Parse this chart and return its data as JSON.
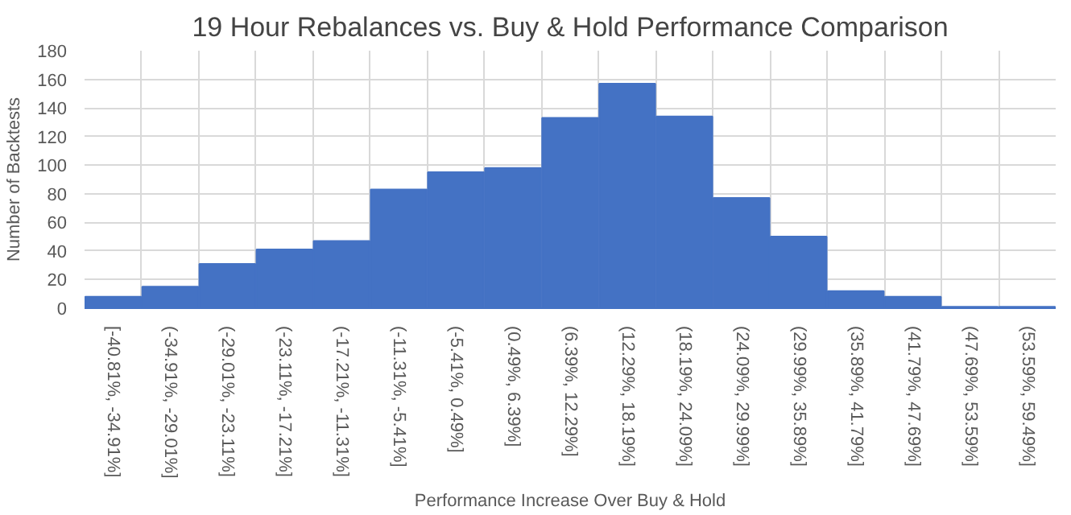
{
  "chart_data": {
    "type": "bar",
    "title": "19 Hour Rebalances vs. Buy & Hold Performance Comparison",
    "xlabel": "Performance Increase Over Buy & Hold",
    "ylabel": "Number of Backtests",
    "categories": [
      "[-40.81%, -34.91%]",
      "(-34.91%, -29.01%]",
      "(-29.01%, -23.11%]",
      "(-23.11%, -17.21%]",
      "(-17.21%, -11.31%]",
      "(-11.31%, -5.41%]",
      "(-5.41%, 0.49%]",
      "(0.49%, 6.39%]",
      "(6.39%, 12.29%]",
      "(12.29%, 18.19%]",
      "(18.19%, 24.09%]",
      "(24.09%, 29.99%]",
      "(29.99%, 35.89%]",
      "(35.89%, 41.79%]",
      "(41.79%, 47.69%]",
      "(47.69%, 53.59%]",
      "(53.59%, 59.49%]"
    ],
    "values": [
      8,
      15,
      31,
      41,
      47,
      83,
      95,
      98,
      133,
      157,
      134,
      77,
      50,
      12,
      8,
      1,
      1
    ],
    "color": "#4472c4",
    "ylim": [
      0,
      180
    ],
    "yticks": [
      0,
      20,
      40,
      60,
      80,
      100,
      120,
      140,
      160,
      180
    ],
    "grid": true
  }
}
